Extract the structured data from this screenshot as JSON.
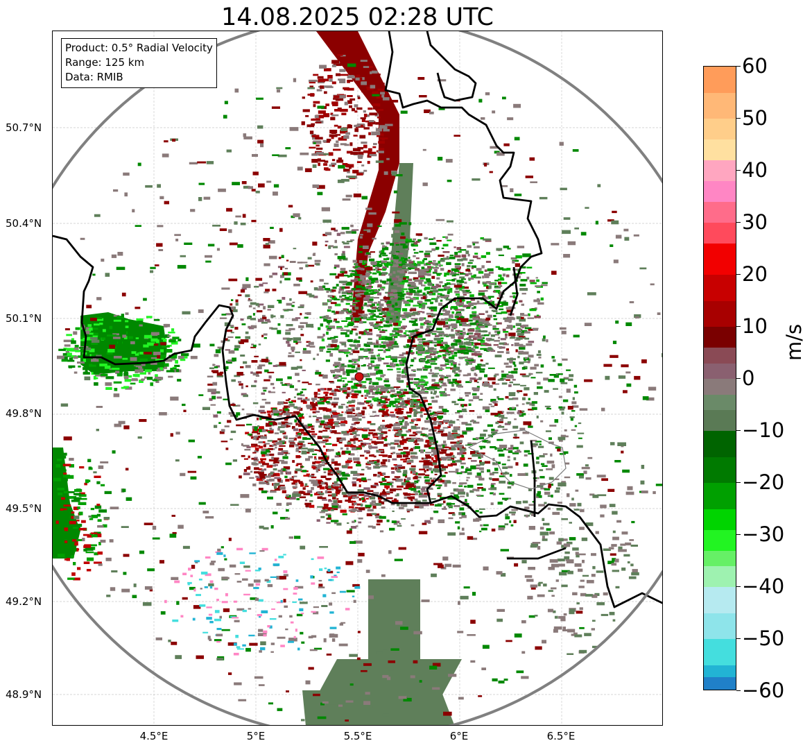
{
  "title": "14.08.2025 02:28 UTC",
  "info_box": {
    "product": "Product: 0.5° Radial Velocity",
    "range": "Range: 125 km",
    "data": "Data: RMIB"
  },
  "axes": {
    "lat_labels": [
      "50.7°N",
      "50.4°N",
      "50.1°N",
      "49.8°N",
      "49.5°N",
      "49.2°N",
      "48.9°N"
    ],
    "lon_labels": [
      "4.5°E",
      "5°E",
      "5.5°E",
      "6°E",
      "6.5°E"
    ]
  },
  "colorbar": {
    "unit": "m/s",
    "min": -60,
    "max": 60,
    "tick_labels": [
      "60",
      "50",
      "40",
      "30",
      "20",
      "10",
      "0",
      "−10",
      "−20",
      "−30",
      "−40",
      "−50",
      "−60"
    ],
    "stops": [
      {
        "v": 60,
        "color": "#ff9c5a"
      },
      {
        "v": 55,
        "color": "#ffb877"
      },
      {
        "v": 50,
        "color": "#ffce8a"
      },
      {
        "v": 46,
        "color": "#ffe0a0"
      },
      {
        "v": 42,
        "color": "#ffa6c0"
      },
      {
        "v": 38,
        "color": "#ff86c4"
      },
      {
        "v": 34,
        "color": "#ff6c8a"
      },
      {
        "v": 30,
        "color": "#ff4a5c"
      },
      {
        "v": 26,
        "color": "#f20000"
      },
      {
        "v": 20,
        "color": "#c80000"
      },
      {
        "v": 15,
        "color": "#a80000"
      },
      {
        "v": 10,
        "color": "#7a0000"
      },
      {
        "v": 6,
        "color": "#8a4a55"
      },
      {
        "v": 3,
        "color": "#8a6070"
      },
      {
        "v": 0,
        "color": "#8a7a7a"
      },
      {
        "v": -3,
        "color": "#6a8a68"
      },
      {
        "v": -6,
        "color": "#5a7a55"
      },
      {
        "v": -10,
        "color": "#006400"
      },
      {
        "v": -15,
        "color": "#007a00"
      },
      {
        "v": -20,
        "color": "#00a000"
      },
      {
        "v": -25,
        "color": "#00d400"
      },
      {
        "v": -29,
        "color": "#22f422"
      },
      {
        "v": -33,
        "color": "#66f066"
      },
      {
        "v": -36,
        "color": "#9ef2b0"
      },
      {
        "v": -40,
        "color": "#b6eaf0"
      },
      {
        "v": -45,
        "color": "#8ee4ea"
      },
      {
        "v": -50,
        "color": "#44dede"
      },
      {
        "v": -55,
        "color": "#22b4d4"
      },
      {
        "v": -60,
        "color": "#2080c8"
      }
    ]
  },
  "radar": {
    "site_lat": 49.91,
    "site_lon": 5.51,
    "range_km": 125,
    "site_color": "#d01010"
  },
  "colors": {
    "stationary": "#8a7a7a",
    "approaching": "#008800",
    "receding": "#8b0000",
    "ground": "#5f7f5a",
    "range_ring": "#808080",
    "border": "#000000"
  }
}
